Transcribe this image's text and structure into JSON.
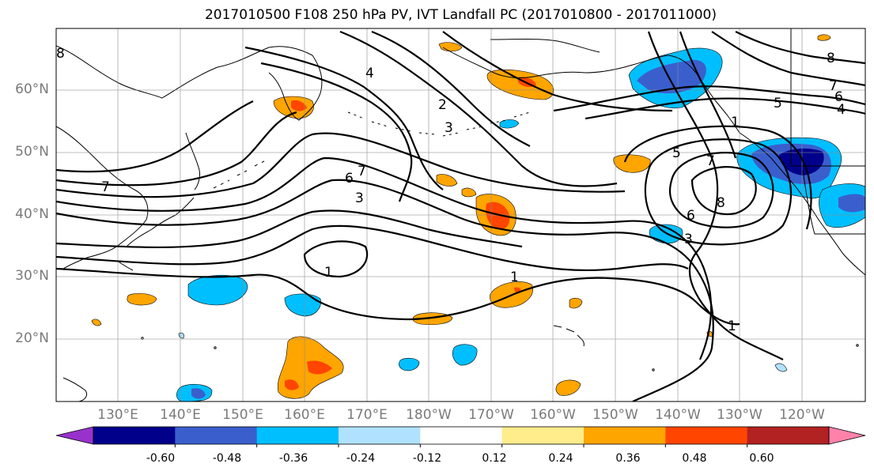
{
  "title": "2017010500 F108 250 hPa PV, IVT Landfall PC (2017010800 - 2017011000)",
  "lat_ticks": [
    "60°N",
    "50°N",
    "40°N",
    "30°N",
    "20°N"
  ],
  "lon_ticks": [
    "130°E",
    "140°E",
    "150°E",
    "160°E",
    "170°E",
    "180°W",
    "170°W",
    "160°W",
    "150°W",
    "140°W",
    "130°W",
    "120°W"
  ],
  "colorbar": {
    "tick_labels": [
      "-0.60",
      "-0.48",
      "-0.36",
      "-0.24",
      "-0.12",
      "0.12",
      "0.24",
      "0.36",
      "0.48",
      "0.60"
    ],
    "colors": [
      "#9932cc",
      "#00008b",
      "#3a5fcd",
      "#00bfff",
      "#b0e2ff",
      "#ffffff",
      "#ffec8b",
      "#ffa500",
      "#ff4500",
      "#b22222",
      "#ff82ab"
    ]
  },
  "contour_labels": [
    "8",
    "4",
    "2",
    "3",
    "6",
    "7",
    "3",
    "7",
    "1",
    "1",
    "1",
    "5",
    "7",
    "8",
    "6",
    "3",
    "5",
    "6",
    "4",
    "7",
    "8",
    "1"
  ],
  "icons": [
    "coastline-map",
    "pv-contours",
    "ivt-shading"
  ]
}
